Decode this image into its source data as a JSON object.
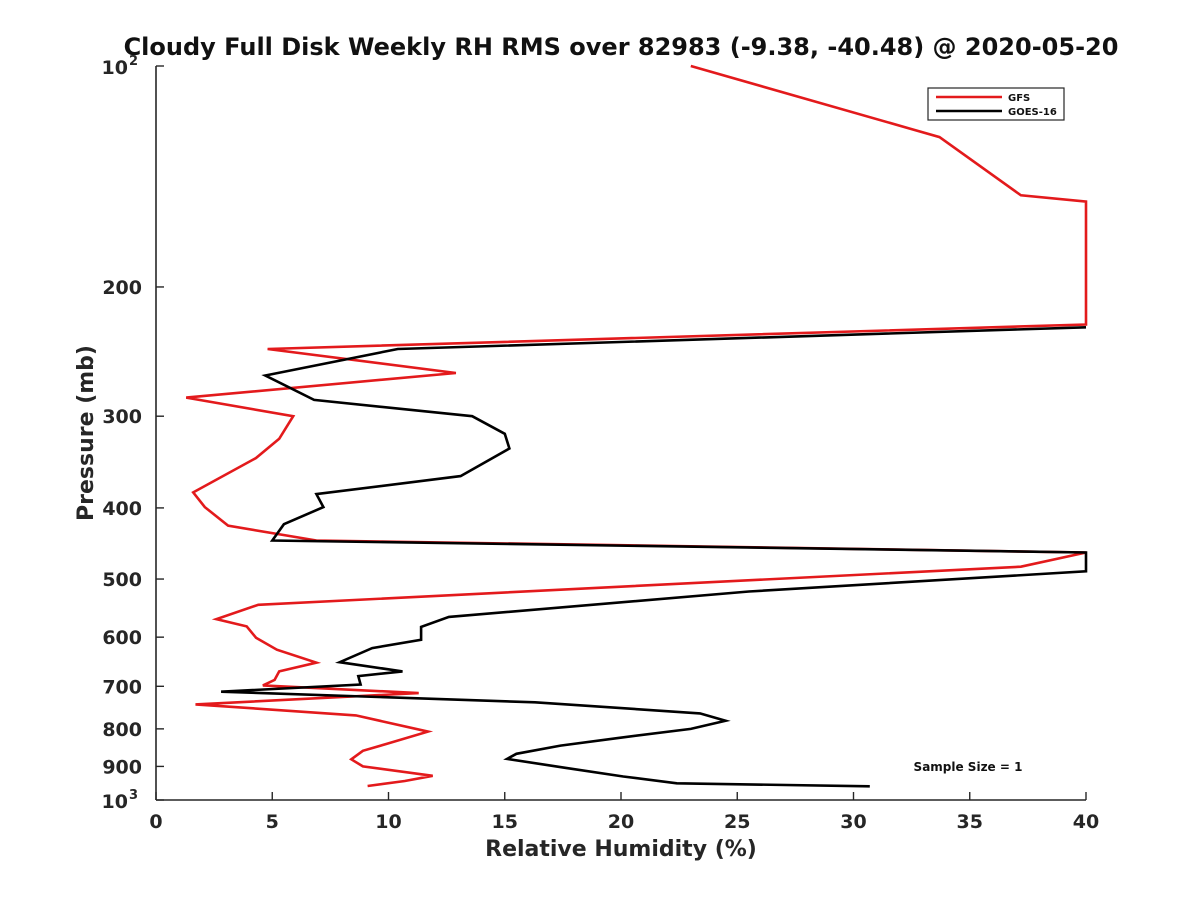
{
  "chart_data": {
    "type": "line",
    "title": "Cloudy Full Disk Weekly RH RMS over 82983 (-9.38, -40.48) @ 2020-05-20",
    "xlabel": "Relative Humidity (%)",
    "ylabel": "Pressure (mb)",
    "xlim": [
      0,
      40
    ],
    "ylim": [
      100,
      1000
    ],
    "yscale": "log",
    "yreverse": true,
    "grid": false,
    "legend_position": "top-right",
    "x_ticks": [
      "0",
      "5",
      "10",
      "15",
      "20",
      "25",
      "30",
      "35",
      "40"
    ],
    "y_ticks": [
      {
        "value": 100,
        "base": "10",
        "exp": "2"
      },
      {
        "value": 200,
        "label": "200"
      },
      {
        "value": 300,
        "label": "300"
      },
      {
        "value": 400,
        "label": "400"
      },
      {
        "value": 500,
        "label": "500"
      },
      {
        "value": 600,
        "label": "600"
      },
      {
        "value": 700,
        "label": "700"
      },
      {
        "value": 800,
        "label": "800"
      },
      {
        "value": 900,
        "label": "900"
      },
      {
        "value": 1000,
        "base": "10",
        "exp": "3"
      }
    ],
    "annotation": "Sample Size = 1",
    "series": [
      {
        "name": "GFS",
        "color": "#e31a1c",
        "points": [
          [
            23.0,
            100
          ],
          [
            33.7,
            125
          ],
          [
            37.2,
            150
          ],
          [
            40.0,
            153
          ],
          [
            40.0,
            225
          ],
          [
            4.8,
            243
          ],
          [
            12.9,
            262
          ],
          [
            1.3,
            283
          ],
          [
            5.9,
            300
          ],
          [
            5.3,
            322
          ],
          [
            4.3,
            342
          ],
          [
            1.6,
            381
          ],
          [
            2.1,
            399
          ],
          [
            3.1,
            423
          ],
          [
            6.9,
            443
          ],
          [
            40.0,
            460
          ],
          [
            37.2,
            481
          ],
          [
            4.4,
            542
          ],
          [
            2.6,
            567
          ],
          [
            3.9,
            580
          ],
          [
            4.3,
            601
          ],
          [
            5.2,
            624
          ],
          [
            6.9,
            650
          ],
          [
            5.3,
            668
          ],
          [
            5.1,
            686
          ],
          [
            4.6,
            698
          ],
          [
            11.3,
            715
          ],
          [
            1.7,
            741
          ],
          [
            8.6,
            767
          ],
          [
            11.7,
            807
          ],
          [
            9.9,
            839
          ],
          [
            8.9,
            857
          ],
          [
            8.4,
            880
          ],
          [
            8.9,
            900
          ],
          [
            11.9,
            927
          ],
          [
            10.7,
            942
          ],
          [
            9.1,
            957
          ]
        ]
      },
      {
        "name": "GOES-16",
        "color": "#000000",
        "points": [
          [
            40.0,
            227
          ],
          [
            10.4,
            243
          ],
          [
            4.7,
            264
          ],
          [
            6.8,
            285
          ],
          [
            13.6,
            300
          ],
          [
            15.0,
            317
          ],
          [
            15.2,
            332
          ],
          [
            13.1,
            362
          ],
          [
            6.9,
            383
          ],
          [
            7.2,
            399
          ],
          [
            5.5,
            421
          ],
          [
            5.0,
            443
          ],
          [
            40.0,
            460
          ],
          [
            40.0,
            488
          ],
          [
            25.5,
            520
          ],
          [
            12.6,
            563
          ],
          [
            11.4,
            581
          ],
          [
            11.4,
            605
          ],
          [
            9.3,
            621
          ],
          [
            7.9,
            649
          ],
          [
            10.6,
            668
          ],
          [
            8.7,
            678
          ],
          [
            8.8,
            696
          ],
          [
            2.8,
            712
          ],
          [
            16.3,
            736
          ],
          [
            23.4,
            762
          ],
          [
            24.5,
            780
          ],
          [
            23.0,
            800
          ],
          [
            19.9,
            823
          ],
          [
            17.4,
            843
          ],
          [
            15.5,
            865
          ],
          [
            15.1,
            879
          ],
          [
            17.6,
            904
          ],
          [
            20.1,
            929
          ],
          [
            22.4,
            949
          ],
          [
            30.7,
            958
          ]
        ]
      }
    ]
  }
}
